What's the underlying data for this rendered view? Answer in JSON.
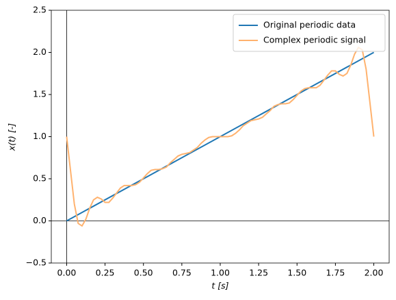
{
  "chart_data": {
    "type": "line",
    "xlabel": "t [s]",
    "ylabel": "x(t) [-]",
    "xlim": [
      -0.1,
      2.1
    ],
    "ylim": [
      -0.5,
      2.5
    ],
    "xticks": [
      {
        "value": 0,
        "label": "0.00"
      },
      {
        "value": 0.25,
        "label": "0.25"
      },
      {
        "value": 0.5,
        "label": "0.50"
      },
      {
        "value": 0.75,
        "label": "0.75"
      },
      {
        "value": 1,
        "label": "1.00"
      },
      {
        "value": 1.25,
        "label": "1.25"
      },
      {
        "value": 1.5,
        "label": "1.50"
      },
      {
        "value": 1.75,
        "label": "1.75"
      },
      {
        "value": 2,
        "label": "2.00"
      }
    ],
    "yticks": [
      {
        "value": -0.5,
        "label": "−0.5"
      },
      {
        "value": 0,
        "label": "0.0"
      },
      {
        "value": 0.5,
        "label": "0.5"
      },
      {
        "value": 1,
        "label": "1.0"
      },
      {
        "value": 1.5,
        "label": "1.5"
      },
      {
        "value": 2,
        "label": "2.0"
      },
      {
        "value": 2.5,
        "label": "2.5"
      }
    ],
    "hlines": [
      0
    ],
    "vlines": [
      0
    ],
    "legend": "upper right",
    "series": [
      {
        "name": "Original periodic data",
        "color": "#1f77b4",
        "x": [
          0,
          2
        ],
        "values": [
          0,
          2
        ]
      },
      {
        "name": "Complex periodic signal",
        "color": "#ffb26e",
        "x": [
          0,
          0.025,
          0.05,
          0.075,
          0.1,
          0.125,
          0.15,
          0.175,
          0.2,
          0.225,
          0.25,
          0.275,
          0.3,
          0.325,
          0.35,
          0.375,
          0.4,
          0.425,
          0.45,
          0.475,
          0.5,
          0.525,
          0.55,
          0.575,
          0.6,
          0.625,
          0.65,
          0.675,
          0.7,
          0.725,
          0.75,
          0.775,
          0.8,
          0.825,
          0.85,
          0.875,
          0.9,
          0.925,
          0.95,
          0.975,
          1,
          1.025,
          1.05,
          1.075,
          1.1,
          1.125,
          1.15,
          1.175,
          1.2,
          1.225,
          1.25,
          1.275,
          1.3,
          1.325,
          1.35,
          1.375,
          1.4,
          1.425,
          1.45,
          1.475,
          1.5,
          1.525,
          1.55,
          1.575,
          1.6,
          1.625,
          1.65,
          1.675,
          1.7,
          1.725,
          1.75,
          1.775,
          1.8,
          1.825,
          1.85,
          1.875,
          1.9,
          1.925,
          1.95,
          1.975,
          2
        ],
        "values": [
          1,
          0.6,
          0.2,
          -0.03,
          -0.06,
          0.02,
          0.15,
          0.25,
          0.28,
          0.26,
          0.22,
          0.22,
          0.27,
          0.33,
          0.39,
          0.42,
          0.42,
          0.42,
          0.43,
          0.46,
          0.51,
          0.56,
          0.6,
          0.61,
          0.61,
          0.62,
          0.64,
          0.69,
          0.73,
          0.77,
          0.79,
          0.8,
          0.81,
          0.84,
          0.87,
          0.92,
          0.96,
          0.99,
          1,
          1,
          1,
          1,
          1,
          1.01,
          1.04,
          1.08,
          1.13,
          1.16,
          1.19,
          1.2,
          1.21,
          1.23,
          1.27,
          1.31,
          1.36,
          1.38,
          1.39,
          1.39,
          1.4,
          1.44,
          1.49,
          1.54,
          1.57,
          1.58,
          1.58,
          1.58,
          1.61,
          1.67,
          1.73,
          1.78,
          1.78,
          1.74,
          1.72,
          1.75,
          1.85,
          1.98,
          2.06,
          2.03,
          1.8,
          1.4,
          1
        ]
      }
    ]
  }
}
